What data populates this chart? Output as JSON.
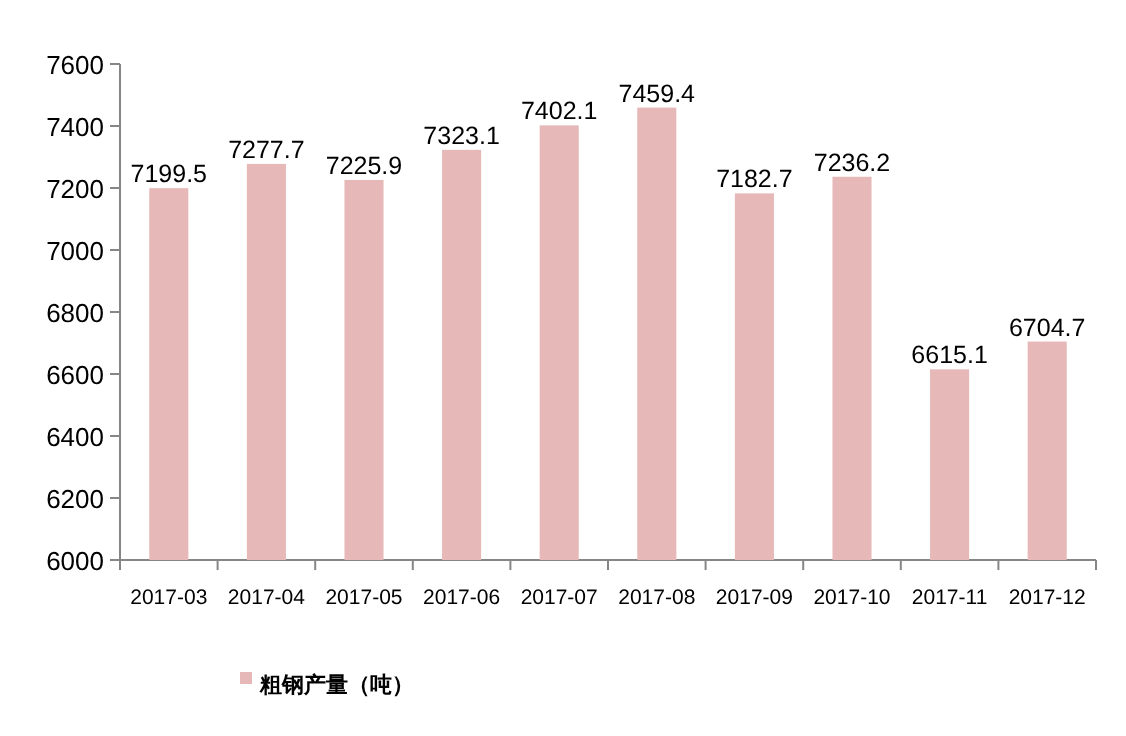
{
  "chart_data": {
    "type": "bar",
    "categories": [
      "2017-03",
      "2017-04",
      "2017-05",
      "2017-06",
      "2017-07",
      "2017-08",
      "2017-09",
      "2017-10",
      "2017-11",
      "2017-12"
    ],
    "series": [
      {
        "name": "粗钢产量（吨）",
        "color": "#e6b8b7",
        "values": [
          7199.5,
          7277.7,
          7225.9,
          7323.1,
          7402.1,
          7459.4,
          7182.7,
          7236.2,
          6615.1,
          6704.7
        ]
      }
    ],
    "ylim": [
      6000,
      7600
    ],
    "yticks": [
      6000,
      6200,
      6400,
      6600,
      6800,
      7000,
      7200,
      7400,
      7600
    ],
    "grid": false,
    "legend": "bottom",
    "data_labels": true
  }
}
